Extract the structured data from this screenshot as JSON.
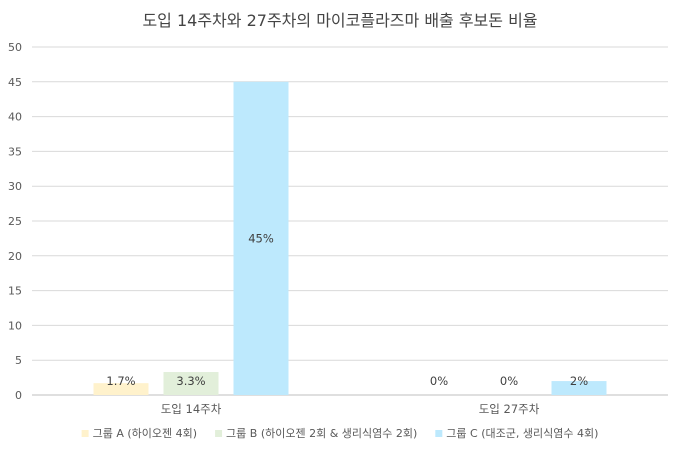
{
  "chart_data": {
    "type": "bar",
    "title": "도입 14주차와 27주차의 마이코플라즈마 배출 후보돈 비율",
    "xlabel": "",
    "ylabel": "",
    "ylim": [
      0,
      50
    ],
    "y_ticks": [
      0,
      5,
      10,
      15,
      20,
      25,
      30,
      35,
      40,
      45,
      50
    ],
    "grid": true,
    "legend_position": "bottom",
    "categories": [
      "도입 14주차",
      "도입 27주차"
    ],
    "series": [
      {
        "name": "그룹 A (하이오젠 4회)",
        "color": "#FFF2CC",
        "values": [
          1.7,
          0
        ],
        "labels": [
          "1.7%",
          "0%"
        ]
      },
      {
        "name": "그룹 B (하이오젠 2회 & 생리식염수 2회)",
        "color": "#E2EFDA",
        "values": [
          3.3,
          0
        ],
        "labels": [
          "3.3%",
          "0%"
        ]
      },
      {
        "name": "그룹 C (대조군, 생리식염수 4회)",
        "color": "#BDE9FD",
        "values": [
          45,
          2
        ],
        "labels": [
          "45%",
          "2%"
        ]
      }
    ]
  }
}
